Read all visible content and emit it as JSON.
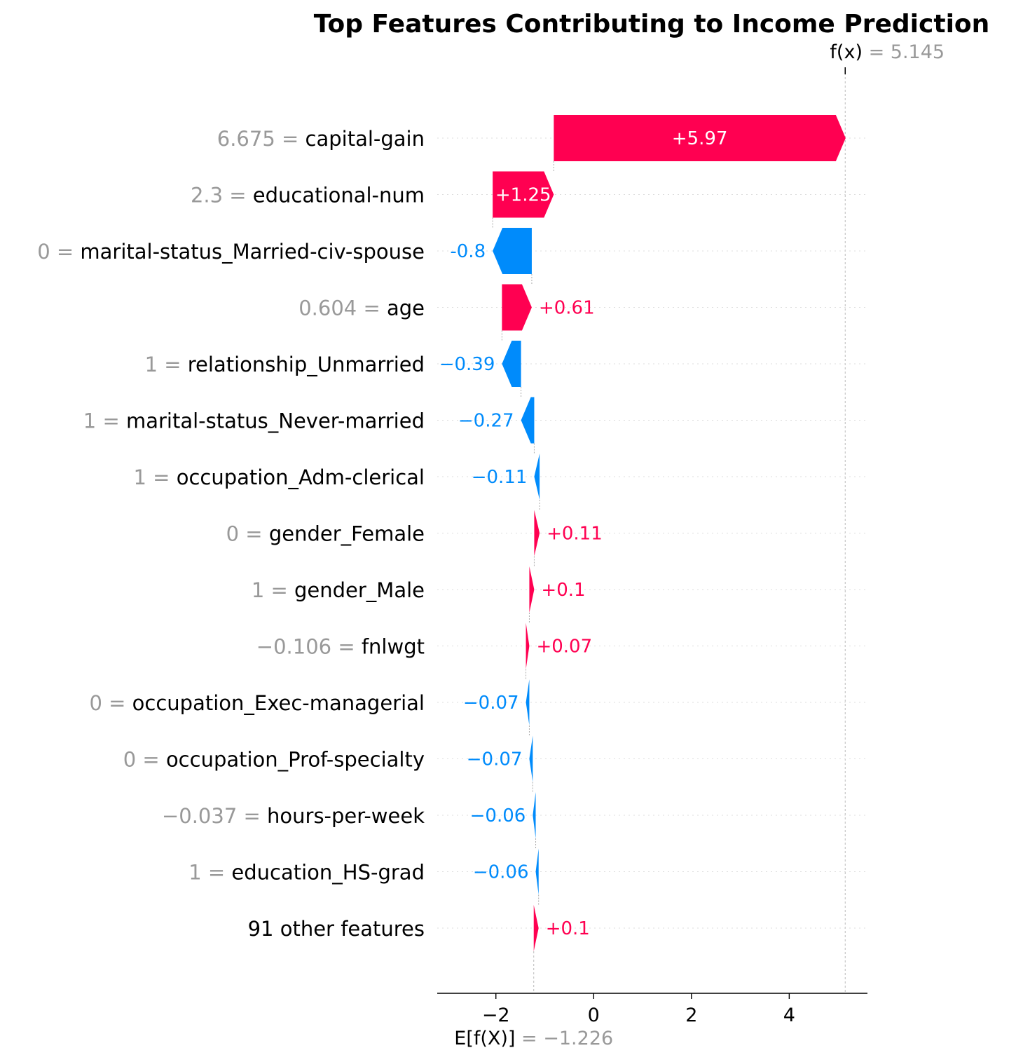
{
  "chart_data": {
    "type": "waterfall",
    "title": "Top Features Contributing to Income Prediction",
    "base_value": -1.226,
    "base_label": "E[f(X)]",
    "base_value_text": "= −1.226",
    "output_value": 5.145,
    "output_label": "f(x)",
    "output_value_text": "= 5.145",
    "xlim": [
      -3.2,
      5.6
    ],
    "xticks": [
      -2,
      0,
      2,
      4
    ],
    "xtick_labels": [
      "−2",
      "0",
      "2",
      "4"
    ],
    "colors": {
      "positive": "#ff0051",
      "negative": "#008bfb",
      "value_text": "#999999",
      "grid": "#cccccc"
    },
    "features": [
      {
        "value": "6.675",
        "name": "capital-gain",
        "shap": 5.97,
        "label": "+5.97"
      },
      {
        "value": "2.3",
        "name": "educational-num",
        "shap": 1.25,
        "label": "+1.25"
      },
      {
        "value": "0",
        "name": "marital-status_Married-civ-spouse",
        "shap": -0.8,
        "label": "-0.8"
      },
      {
        "value": "0.604",
        "name": "age",
        "shap": 0.61,
        "label": "+0.61"
      },
      {
        "value": "1",
        "name": "relationship_Unmarried",
        "shap": -0.39,
        "label": "−0.39"
      },
      {
        "value": "1",
        "name": "marital-status_Never-married",
        "shap": -0.27,
        "label": "−0.27"
      },
      {
        "value": "1",
        "name": "occupation_Adm-clerical",
        "shap": -0.11,
        "label": "−0.11"
      },
      {
        "value": "0",
        "name": "gender_Female",
        "shap": 0.11,
        "label": "+0.11"
      },
      {
        "value": "1",
        "name": "gender_Male",
        "shap": 0.1,
        "label": "+0.1"
      },
      {
        "value": "−0.106",
        "name": "fnlwgt",
        "shap": 0.07,
        "label": "+0.07"
      },
      {
        "value": "0",
        "name": "occupation_Exec-managerial",
        "shap": -0.07,
        "label": "−0.07"
      },
      {
        "value": "0",
        "name": "occupation_Prof-specialty",
        "shap": -0.07,
        "label": "−0.07"
      },
      {
        "value": "−0.037",
        "name": "hours-per-week",
        "shap": -0.06,
        "label": "−0.06"
      },
      {
        "value": "1",
        "name": "education_HS-grad",
        "shap": -0.06,
        "label": "−0.06"
      },
      {
        "value": "",
        "name": "91 other features",
        "shap": 0.1,
        "label": "+0.1"
      }
    ]
  }
}
